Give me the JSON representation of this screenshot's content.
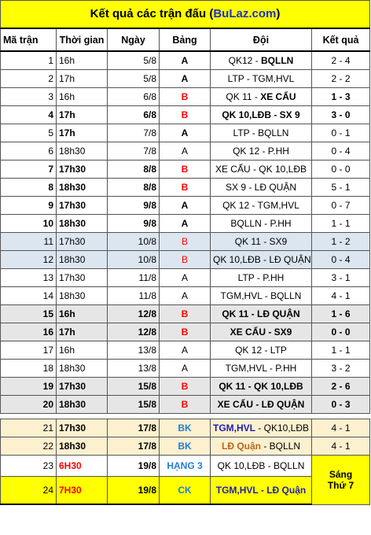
{
  "title": {
    "prefix": "Kết quả các trận đấu (",
    "site": "BuLaz.com",
    "suffix": ")"
  },
  "headers": {
    "no": "Mã trận",
    "time": "Thời gian",
    "date": "Ngày",
    "group": "Bảng",
    "teams": "Đội",
    "result": "Kết quả"
  },
  "matches": [
    {
      "no": "1",
      "time": "16h",
      "date": "5/8",
      "group": "A",
      "teams": "QK12 - ",
      "teams_b": "BQLLN",
      "result": "2 - 4"
    },
    {
      "no": "2",
      "time": "17h",
      "date": "5/8",
      "group": "A",
      "teams": "LTP - TGM,HVL",
      "result": "2 - 2"
    },
    {
      "no": "3",
      "time": "16h",
      "date": "6/8",
      "group": "B",
      "teams": "QK 11 - ",
      "teams_b": "XE CẨU",
      "result": "1 - 3"
    },
    {
      "no": "4",
      "time": "17h",
      "date": "6/8",
      "group": "B",
      "teams": "QK 10,LĐB - SX 9",
      "result": "3 - 0"
    },
    {
      "no": "5",
      "time": "17h",
      "date": "7/8",
      "group": "A",
      "teams": "LTP - BQLLN",
      "result": "0 - 1"
    },
    {
      "no": "6",
      "time": "18h30",
      "date": "7/8",
      "group": "A",
      "teams": "QK 12 - P.HH",
      "result": "0 - 4"
    },
    {
      "no": "7",
      "time": "17h30",
      "date": "8/8",
      "group": "B",
      "teams": "XE CẨU - QK 10,LĐB",
      "result": "0 - 0"
    },
    {
      "no": "8",
      "time": "18h30",
      "date": "8/8",
      "group": "B",
      "teams": "SX 9 - LĐ QUẬN",
      "result": "5 - 1"
    },
    {
      "no": "9",
      "time": "17h30",
      "date": "9/8",
      "group": "A",
      "teams": "QK 12 - TGM,HVL",
      "result": "0 - 7"
    },
    {
      "no": "10",
      "time": "18h30",
      "date": "9/8",
      "group": "A",
      "teams": "BQLLN - P.HH",
      "result": "1 - 1"
    },
    {
      "no": "11",
      "time": "17h30",
      "date": "10/8",
      "group": "B",
      "teams": "QK 11 - SX9",
      "result": "1 - 2"
    },
    {
      "no": "12",
      "time": "18h30",
      "date": "10/8",
      "group": "B",
      "teams": "QK 10,LĐB - LĐ QUẬN",
      "result": "0 - 4"
    },
    {
      "no": "13",
      "time": "17h30",
      "date": "11/8",
      "group": "A",
      "teams": "LTP - P.HH",
      "result": "3 - 1"
    },
    {
      "no": "14",
      "time": "18h30",
      "date": "11/8",
      "group": "A",
      "teams": "TGM,HVL - BQLLN",
      "result": "4 - 1"
    },
    {
      "no": "15",
      "time": "16h",
      "date": "12/8",
      "group": "B",
      "teams": "QK 11 - LĐ QUẬN",
      "result": "1 - 6"
    },
    {
      "no": "16",
      "time": "17h",
      "date": "12/8",
      "group": "B",
      "teams": "XE CẨU - SX9",
      "result": "0 - 0"
    },
    {
      "no": "17",
      "time": "16h",
      "date": "13/8",
      "group": "A",
      "teams": "QK 12 - LTP",
      "result": "1 - 1"
    },
    {
      "no": "18",
      "time": "18h30",
      "date": "13/8",
      "group": "A",
      "teams": "TGM,HVL - P.HH",
      "result": "3 - 2"
    },
    {
      "no": "19",
      "time": "17h30",
      "date": "15/8",
      "group": "B",
      "teams": "QK 11 - QK 10,LĐB",
      "result": "2 - 6"
    },
    {
      "no": "20",
      "time": "18h30",
      "date": "15/8",
      "group": "B",
      "teams": "XE CẨU - LĐ QUẬN",
      "result": "0 - 3"
    },
    {
      "no": "21",
      "time": "17h30",
      "date": "17/8",
      "group": "BK",
      "teams": "TGM,HVL",
      "teams_b": " - QK10,LĐB",
      "result": "4 - 1"
    },
    {
      "no": "22",
      "time": "18h30",
      "date": "17/8",
      "group": "BK",
      "teams": "LĐ Quận",
      "teams_b": " - BQLLN",
      "result": "4 - 1"
    },
    {
      "no": "23",
      "time": "6H30",
      "date": "19/8",
      "group": "HẠNG 3",
      "teams": "QK 10,LĐB - BQLLN"
    },
    {
      "no": "24",
      "time": "7H30",
      "date": "19/8",
      "group": "CK",
      "teams": "TGM,HVL - LĐ Quận"
    }
  ],
  "final_note": {
    "line1": "Sáng",
    "line2": "Thứ 7"
  },
  "colors": {
    "title_bg": "#ffff00",
    "site_link": "#1c2fd6",
    "group_b": "#ff0000",
    "knockout": "#1f7ed8",
    "highlight_time": "#ff0000"
  }
}
